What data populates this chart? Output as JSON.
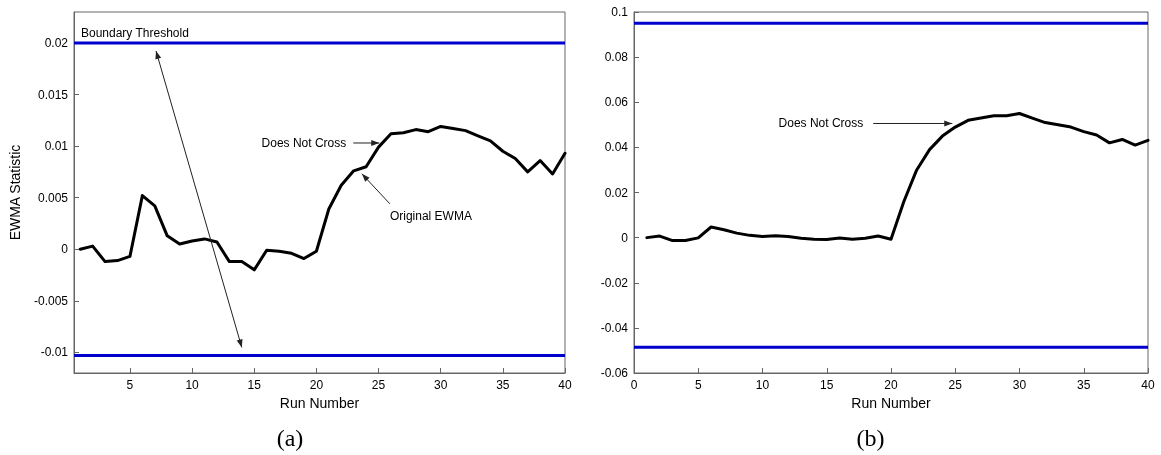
{
  "chart_data": [
    {
      "type": "line",
      "title": "(a)",
      "xlabel": "Run Number",
      "ylabel": "EWMA Statistic",
      "x": [
        1,
        2,
        3,
        4,
        5,
        6,
        7,
        8,
        9,
        10,
        11,
        12,
        13,
        14,
        15,
        16,
        17,
        18,
        19,
        20,
        21,
        22,
        23,
        24,
        25,
        26,
        27,
        28,
        29,
        30,
        31,
        32,
        33,
        34,
        35,
        36,
        37,
        38,
        39,
        40
      ],
      "series": [
        {
          "color": "#000000",
          "values": [
            0,
            0.0003,
            -0.0012,
            -0.0011,
            -0.0007,
            0.0052,
            0.0042,
            0.0013,
            0.0005,
            0.0008,
            0.001,
            0.0007,
            -0.0012,
            -0.0012,
            -0.002,
            -0.0001,
            -0.0002,
            -0.0004,
            -0.0009,
            -0.0002,
            0.0039,
            0.0062,
            0.0076,
            0.008,
            0.0099,
            0.0112,
            0.0113,
            0.0116,
            0.0114,
            0.0119,
            0.0117,
            0.0115,
            0.011,
            0.0105,
            0.0095,
            0.0088,
            0.0075,
            0.0086,
            0.0073,
            0.0093
          ]
        }
      ],
      "xlim": [
        0.5,
        40
      ],
      "xticks": [
        5,
        10,
        15,
        20,
        25,
        30,
        35,
        40
      ],
      "ylim": [
        -0.012,
        0.023
      ],
      "yticks": [
        -0.01,
        -0.005,
        0,
        0.005,
        0.01,
        0.015,
        0.02
      ],
      "ref_lines": [
        {
          "axis": "y",
          "value": 0.02,
          "label": "Boundary Threshold",
          "color": "#0000cc"
        },
        {
          "axis": "y",
          "value": -0.0103,
          "color": "#0000cc"
        }
      ],
      "annotations": [
        {
          "text": "Does Not Cross",
          "x": 25.3,
          "y": 0.0103
        },
        {
          "text": "Original EWMA",
          "x": 23.5,
          "y": 0.0076
        }
      ],
      "marker": "none",
      "line_style": "solid"
    },
    {
      "type": "line",
      "title": "(b)",
      "xlabel": "Run Number",
      "x": [
        1,
        2,
        3,
        4,
        5,
        6,
        7,
        8,
        9,
        10,
        11,
        12,
        13,
        14,
        15,
        16,
        17,
        18,
        19,
        20,
        21,
        22,
        23,
        24,
        25,
        26,
        27,
        28,
        29,
        30,
        31,
        32,
        33,
        34,
        35,
        36,
        37,
        38,
        39,
        40
      ],
      "series": [
        {
          "color": "#000000",
          "values": [
            0,
            0.0007,
            -0.0013,
            -0.0013,
            -0.0001,
            0.0047,
            0.0035,
            0.002,
            0.001,
            0.0005,
            0.0008,
            0.0005,
            -0.0003,
            -0.0007,
            -0.0008,
            -0.0002,
            -0.0007,
            -0.0003,
            0.0007,
            -0.0007,
            0.016,
            0.03,
            0.039,
            0.045,
            0.049,
            0.052,
            0.053,
            0.054,
            0.054,
            0.055,
            0.053,
            0.051,
            0.05,
            0.049,
            0.047,
            0.0455,
            0.042,
            0.0435,
            0.041,
            0.0431
          ]
        }
      ],
      "xlim": [
        0,
        40
      ],
      "xticks": [
        0,
        5,
        10,
        15,
        20,
        25,
        30,
        35,
        40
      ],
      "ylim": [
        -0.06,
        0.1
      ],
      "yticks": [
        -0.06,
        -0.04,
        -0.02,
        0,
        0.02,
        0.04,
        0.06,
        0.08,
        0.1
      ],
      "ref_lines": [
        {
          "axis": "y",
          "value": 0.095,
          "color": "#0000cc"
        },
        {
          "axis": "y",
          "value": -0.0486,
          "color": "#0000cc"
        }
      ],
      "annotations": [
        {
          "text": "Does Not Cross",
          "x": 25,
          "y": 0.0497
        }
      ],
      "marker": "none",
      "line_style": "solid"
    }
  ]
}
